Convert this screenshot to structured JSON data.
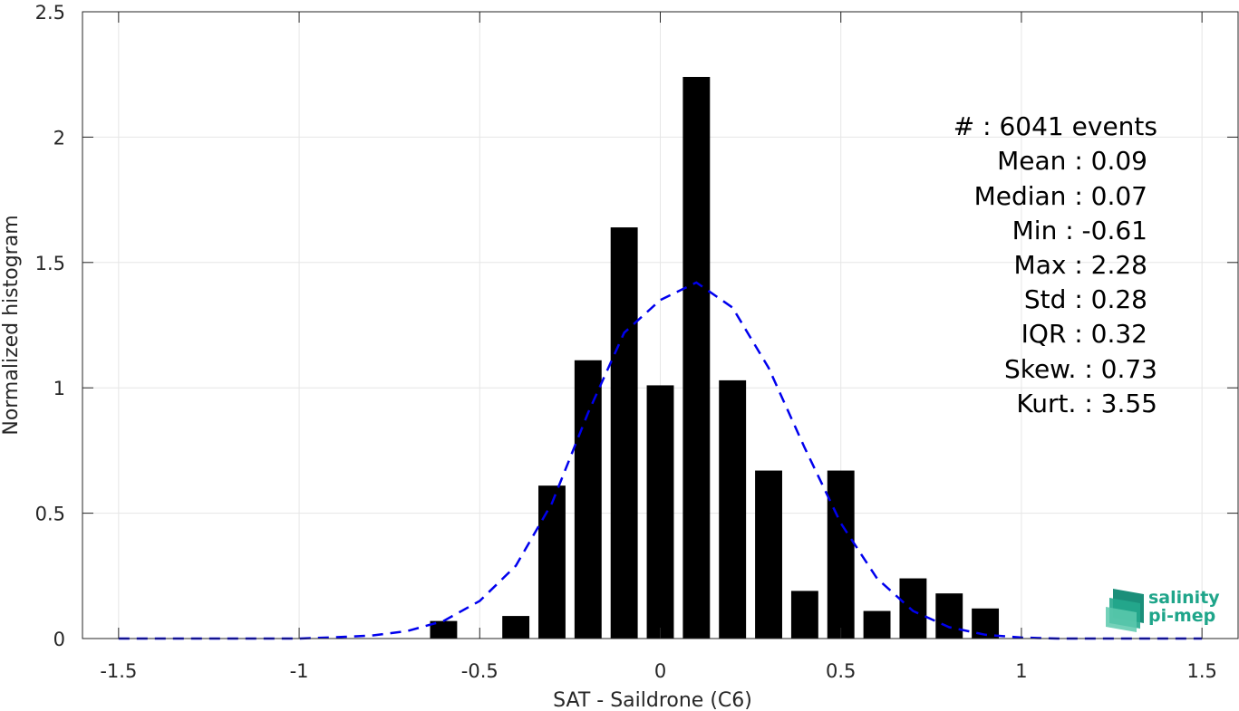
{
  "chart_data": {
    "type": "bar",
    "xlabel": "SAT - Saildrone (C6)",
    "ylabel": "Normalized histogram",
    "xlim": [
      -1.6,
      1.6
    ],
    "ylim": [
      0,
      2.5
    ],
    "xticks": [
      -1.5,
      -1,
      -0.5,
      0,
      0.5,
      1,
      1.5
    ],
    "xtick_labels": [
      "-1.5",
      "-1",
      "-0.5",
      "0",
      "0.5",
      "1",
      "1.5"
    ],
    "yticks": [
      0,
      0.5,
      1,
      1.5,
      2,
      2.5
    ],
    "ytick_labels": [
      "0",
      "0.5",
      "1",
      "1.5",
      "2",
      "2.5"
    ],
    "grid": true,
    "bar_color": "#000000",
    "bar_width": 0.075,
    "bars": [
      {
        "x": -0.6,
        "y": 0.07
      },
      {
        "x": -0.4,
        "y": 0.09
      },
      {
        "x": -0.3,
        "y": 0.61
      },
      {
        "x": -0.2,
        "y": 1.11
      },
      {
        "x": -0.1,
        "y": 1.64
      },
      {
        "x": 0.0,
        "y": 1.01
      },
      {
        "x": 0.1,
        "y": 2.24
      },
      {
        "x": 0.2,
        "y": 1.03
      },
      {
        "x": 0.3,
        "y": 0.67
      },
      {
        "x": 0.4,
        "y": 0.19
      },
      {
        "x": 0.5,
        "y": 0.67
      },
      {
        "x": 0.6,
        "y": 0.11
      },
      {
        "x": 0.7,
        "y": 0.24
      },
      {
        "x": 0.8,
        "y": 0.18
      },
      {
        "x": 0.9,
        "y": 0.12
      }
    ],
    "fit_curve": {
      "style": "dashed",
      "color": "#0000ee",
      "x": [
        -1.5,
        -1.4,
        -1.3,
        -1.2,
        -1.1,
        -1.0,
        -0.9,
        -0.8,
        -0.7,
        -0.6,
        -0.5,
        -0.4,
        -0.3,
        -0.2,
        -0.1,
        0.0,
        0.1,
        0.2,
        0.3,
        0.4,
        0.5,
        0.6,
        0.7,
        0.8,
        0.9,
        1.0,
        1.1,
        1.2,
        1.3,
        1.4,
        1.5
      ],
      "y": [
        0,
        0,
        0,
        0,
        0,
        0,
        0.005,
        0.012,
        0.03,
        0.07,
        0.15,
        0.29,
        0.54,
        0.9,
        1.22,
        1.35,
        1.42,
        1.32,
        1.08,
        0.76,
        0.46,
        0.24,
        0.11,
        0.045,
        0.015,
        0.004,
        0,
        0,
        0,
        0,
        0
      ]
    }
  },
  "stats": {
    "events": "#  : 6041 events",
    "mean": "Mean : 0.09",
    "median": "Median : 0.07",
    "min": "Min : -0.61",
    "max": "Max : 2.28",
    "std": "Std : 0.28",
    "iqr": "IQR : 0.32",
    "skew": "Skew. : 0.73",
    "kurt": "Kurt. : 3.55"
  },
  "logo": {
    "line1": "salinity",
    "line2": "pi-mep",
    "color": "#1fa58a"
  }
}
